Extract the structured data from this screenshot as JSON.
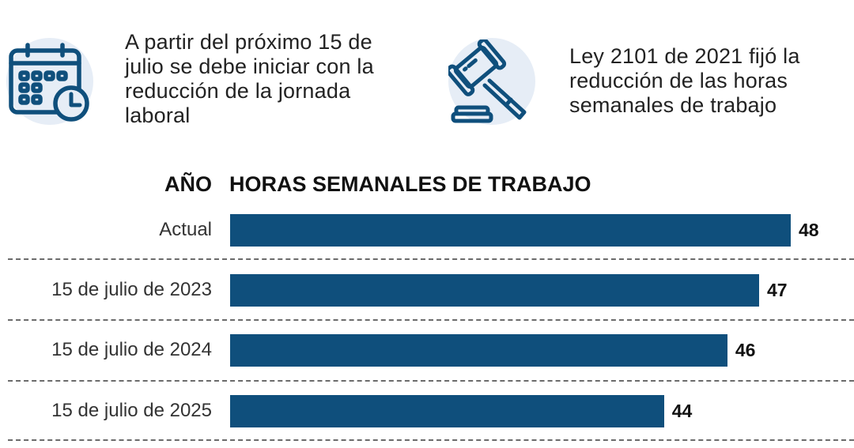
{
  "intro": {
    "left": {
      "icon": "calendar-clock-icon",
      "lines": [
        "A partir del próximo 15 de",
        "julio se debe iniciar con la",
        "reducción de la jornada",
        "laboral"
      ]
    },
    "right": {
      "icon": "gavel-icon",
      "lines": [
        "Ley 2101 de 2021 fijó la",
        "reducción de las horas",
        "semanales de trabajo"
      ]
    }
  },
  "colors": {
    "bar": "#0f4f7c",
    "icon_stroke": "#0f4f7c",
    "icon_bg": "#e6edf6"
  },
  "chart_data": {
    "type": "bar",
    "orientation": "horizontal",
    "column_headers": [
      "AÑO",
      "HORAS SEMANALES DE TRABAJO"
    ],
    "categories": [
      "Actual",
      "15 de julio de 2023",
      "15 de julio de 2024",
      "15 de julio de 2025"
    ],
    "values": [
      48,
      47,
      46,
      44
    ],
    "value_labels": [
      "48",
      "47",
      "46",
      "44"
    ],
    "xlim": [
      30.3,
      48
    ],
    "grid": false,
    "legend": "none",
    "separators": "dashed"
  }
}
